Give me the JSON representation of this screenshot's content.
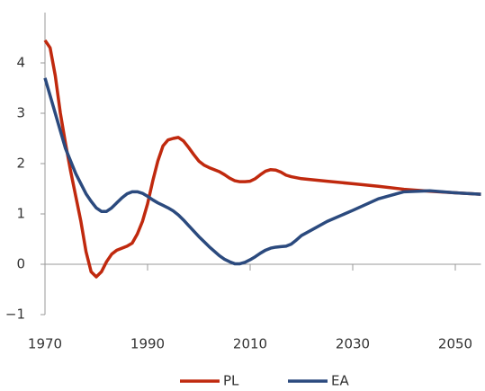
{
  "chart_data": {
    "type": "line",
    "x": [
      1970,
      1971,
      1972,
      1973,
      1974,
      1975,
      1976,
      1977,
      1978,
      1979,
      1980,
      1981,
      1982,
      1983,
      1984,
      1985,
      1986,
      1987,
      1988,
      1989,
      1990,
      1991,
      1992,
      1993,
      1994,
      1995,
      1996,
      1997,
      1998,
      1999,
      2000,
      2001,
      2002,
      2003,
      2004,
      2005,
      2006,
      2007,
      2008,
      2009,
      2010,
      2011,
      2012,
      2013,
      2014,
      2015,
      2016,
      2017,
      2018,
      2019,
      2020,
      2025,
      2030,
      2035,
      2040,
      2045,
      2050,
      2055
    ],
    "series": [
      {
        "name": "PL",
        "color": "#c0290e",
        "values": [
          4.45,
          4.3,
          3.75,
          3.0,
          2.4,
          1.85,
          1.35,
          0.85,
          0.25,
          -0.15,
          -0.25,
          -0.15,
          0.05,
          0.2,
          0.28,
          0.32,
          0.36,
          0.42,
          0.6,
          0.85,
          1.2,
          1.65,
          2.05,
          2.35,
          2.47,
          2.5,
          2.52,
          2.45,
          2.32,
          2.18,
          2.05,
          1.97,
          1.92,
          1.88,
          1.84,
          1.78,
          1.71,
          1.66,
          1.64,
          1.64,
          1.65,
          1.7,
          1.78,
          1.85,
          1.88,
          1.87,
          1.83,
          1.77,
          1.74,
          1.72,
          1.7,
          1.65,
          1.6,
          1.55,
          1.49,
          1.45,
          1.42,
          1.39
        ]
      },
      {
        "name": "EA",
        "color": "#2b4a7e",
        "values": [
          3.7,
          3.35,
          3.0,
          2.65,
          2.3,
          2.05,
          1.8,
          1.6,
          1.4,
          1.25,
          1.12,
          1.05,
          1.05,
          1.12,
          1.22,
          1.32,
          1.4,
          1.44,
          1.44,
          1.41,
          1.35,
          1.28,
          1.22,
          1.17,
          1.12,
          1.06,
          0.98,
          0.88,
          0.77,
          0.66,
          0.55,
          0.45,
          0.35,
          0.26,
          0.17,
          0.1,
          0.05,
          0.01,
          0.01,
          0.04,
          0.09,
          0.15,
          0.22,
          0.28,
          0.32,
          0.34,
          0.35,
          0.36,
          0.4,
          0.48,
          0.57,
          0.85,
          1.07,
          1.3,
          1.44,
          1.46,
          1.42,
          1.39
        ]
      }
    ],
    "xlim": [
      1970,
      2055
    ],
    "xticks": [
      1970,
      1990,
      2010,
      2030,
      2050
    ],
    "ylim": [
      -1,
      5
    ],
    "yticks": [
      {
        "value": -1,
        "label": "−1"
      },
      0,
      1,
      2,
      3,
      4
    ],
    "grid": false,
    "legend": "bottom"
  }
}
